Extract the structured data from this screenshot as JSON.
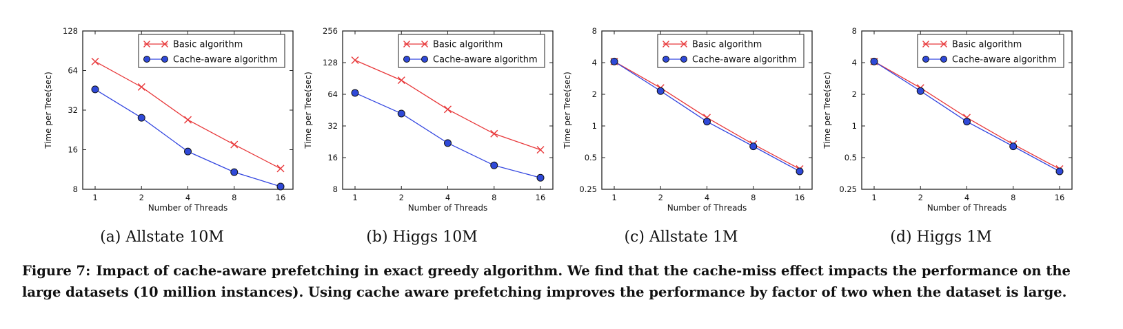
{
  "colors": {
    "basic": "#e8383a",
    "cache": "#3346e0",
    "cache_fill": "#2f49d8",
    "axis": "#222222"
  },
  "chart_data": [
    {
      "id": "a",
      "type": "line",
      "sublabel": "(a) Allstate 10M",
      "xlabel": "Number of Threads",
      "ylabel": "Time per Tree(sec)",
      "x": [
        1,
        2,
        4,
        8,
        16
      ],
      "xscale": "log2",
      "yscale": "log2",
      "ylim": [
        8,
        128
      ],
      "yticks": [
        "8",
        "16",
        "32",
        "64",
        "128"
      ],
      "legend_position": "top-right",
      "series": [
        {
          "name": "Basic algorithm",
          "marker": "x",
          "values": [
            75,
            48,
            27,
            17.5,
            11.5
          ]
        },
        {
          "name": "Cache-aware algorithm",
          "marker": "o",
          "values": [
            46,
            28,
            15.5,
            10.8,
            8.4
          ]
        }
      ]
    },
    {
      "id": "b",
      "type": "line",
      "sublabel": "(b) Higgs 10M",
      "xlabel": "Number of Threads",
      "ylabel": "Time per Tree(sec)",
      "x": [
        1,
        2,
        4,
        8,
        16
      ],
      "xscale": "log2",
      "yscale": "log2",
      "ylim": [
        8,
        256
      ],
      "yticks": [
        "8",
        "16",
        "32",
        "64",
        "128",
        "256"
      ],
      "legend_position": "top-right",
      "series": [
        {
          "name": "Basic algorithm",
          "marker": "x",
          "values": [
            135,
            87,
            46,
            27,
            19
          ]
        },
        {
          "name": "Cache-aware algorithm",
          "marker": "o",
          "values": [
            66,
            42,
            22,
            13.5,
            10.3
          ]
        }
      ]
    },
    {
      "id": "c",
      "type": "line",
      "sublabel": "(c) Allstate 1M",
      "xlabel": "Number of Threads",
      "ylabel": "Time per Tree(sec)",
      "x": [
        1,
        2,
        4,
        8,
        16
      ],
      "xscale": "log2",
      "yscale": "log2",
      "ylim": [
        0.25,
        8
      ],
      "yticks": [
        "0.25",
        "0.5",
        "1",
        "2",
        "4",
        "8"
      ],
      "legend_position": "top-right",
      "series": [
        {
          "name": "Basic algorithm",
          "marker": "x",
          "values": [
            4.1,
            2.3,
            1.2,
            0.67,
            0.39
          ]
        },
        {
          "name": "Cache-aware algorithm",
          "marker": "o",
          "values": [
            4.1,
            2.15,
            1.1,
            0.64,
            0.37
          ]
        }
      ]
    },
    {
      "id": "d",
      "type": "line",
      "sublabel": "(d) Higgs 1M",
      "xlabel": "Number of Threads",
      "ylabel": "Time per Tree(sec)",
      "x": [
        1,
        2,
        4,
        8,
        16
      ],
      "xscale": "log2",
      "yscale": "log2",
      "ylim": [
        0.25,
        8
      ],
      "yticks": [
        "0.25",
        "0.5",
        "1",
        "2",
        "4",
        "8"
      ],
      "legend_position": "top-right",
      "series": [
        {
          "name": "Basic algorithm",
          "marker": "x",
          "values": [
            4.1,
            2.3,
            1.2,
            0.67,
            0.39
          ]
        },
        {
          "name": "Cache-aware algorithm",
          "marker": "o",
          "values": [
            4.1,
            2.15,
            1.1,
            0.64,
            0.37
          ]
        }
      ]
    }
  ],
  "caption": {
    "label": "Figure 7:",
    "text": "Impact of cache-aware prefetching in exact greedy algorithm. We find that the cache-miss effect impacts the performance on the large datasets (10 million instances). Using cache aware prefetching improves the performance by factor of two when the dataset is large."
  }
}
